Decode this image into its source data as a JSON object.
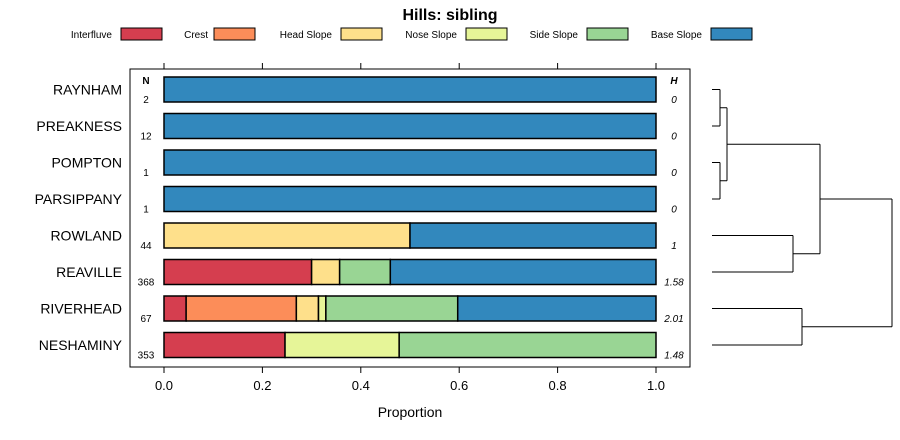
{
  "chart_data": {
    "type": "bar",
    "stacked": true,
    "orientation": "horizontal",
    "title": "Hills: sibling",
    "xlabel": "Proportion",
    "xlim": [
      0,
      1
    ],
    "xticks": [
      "0.0",
      "0.2",
      "0.4",
      "0.6",
      "0.8",
      "1.0"
    ],
    "xtick_values": [
      0,
      0.2,
      0.4,
      0.6,
      0.8,
      1.0
    ],
    "n_header": "N",
    "h_header": "H",
    "legend": [
      {
        "name": "Interfluve",
        "color": "#D53E4F"
      },
      {
        "name": "Crest",
        "color": "#FC8D59"
      },
      {
        "name": "Head Slope",
        "color": "#FEE08B"
      },
      {
        "name": "Nose Slope",
        "color": "#E6F598"
      },
      {
        "name": "Side Slope",
        "color": "#99D594"
      },
      {
        "name": "Base Slope",
        "color": "#3288BD"
      }
    ],
    "categories": [
      "RAYNHAM",
      "PREAKNESS",
      "POMPTON",
      "PARSIPPANY",
      "ROWLAND",
      "REAVILLE",
      "RIVERHEAD",
      "NESHAMINY"
    ],
    "n": [
      "2",
      "12",
      "1",
      "1",
      "44",
      "368",
      "67",
      "353"
    ],
    "h": [
      "0",
      "0",
      "0",
      "0",
      "1",
      "1.58",
      "2.01",
      "1.48"
    ],
    "series": [
      {
        "name": "Interfluve",
        "values": [
          0,
          0,
          0,
          0,
          0,
          0.3,
          0.045,
          0.246
        ]
      },
      {
        "name": "Crest",
        "values": [
          0,
          0,
          0,
          0,
          0,
          0,
          0.224,
          0
        ]
      },
      {
        "name": "Head Slope",
        "values": [
          0,
          0,
          0,
          0,
          0.5,
          0.057,
          0.045,
          0
        ]
      },
      {
        "name": "Nose Slope",
        "values": [
          0,
          0,
          0,
          0,
          0,
          0,
          0.015,
          0.232
        ]
      },
      {
        "name": "Side Slope",
        "values": [
          0,
          0,
          0,
          0,
          0,
          0.103,
          0.268,
          0.522
        ]
      },
      {
        "name": "Base Slope",
        "values": [
          1.0,
          1.0,
          1.0,
          1.0,
          0.5,
          0.54,
          0.403,
          0
        ]
      }
    ]
  }
}
